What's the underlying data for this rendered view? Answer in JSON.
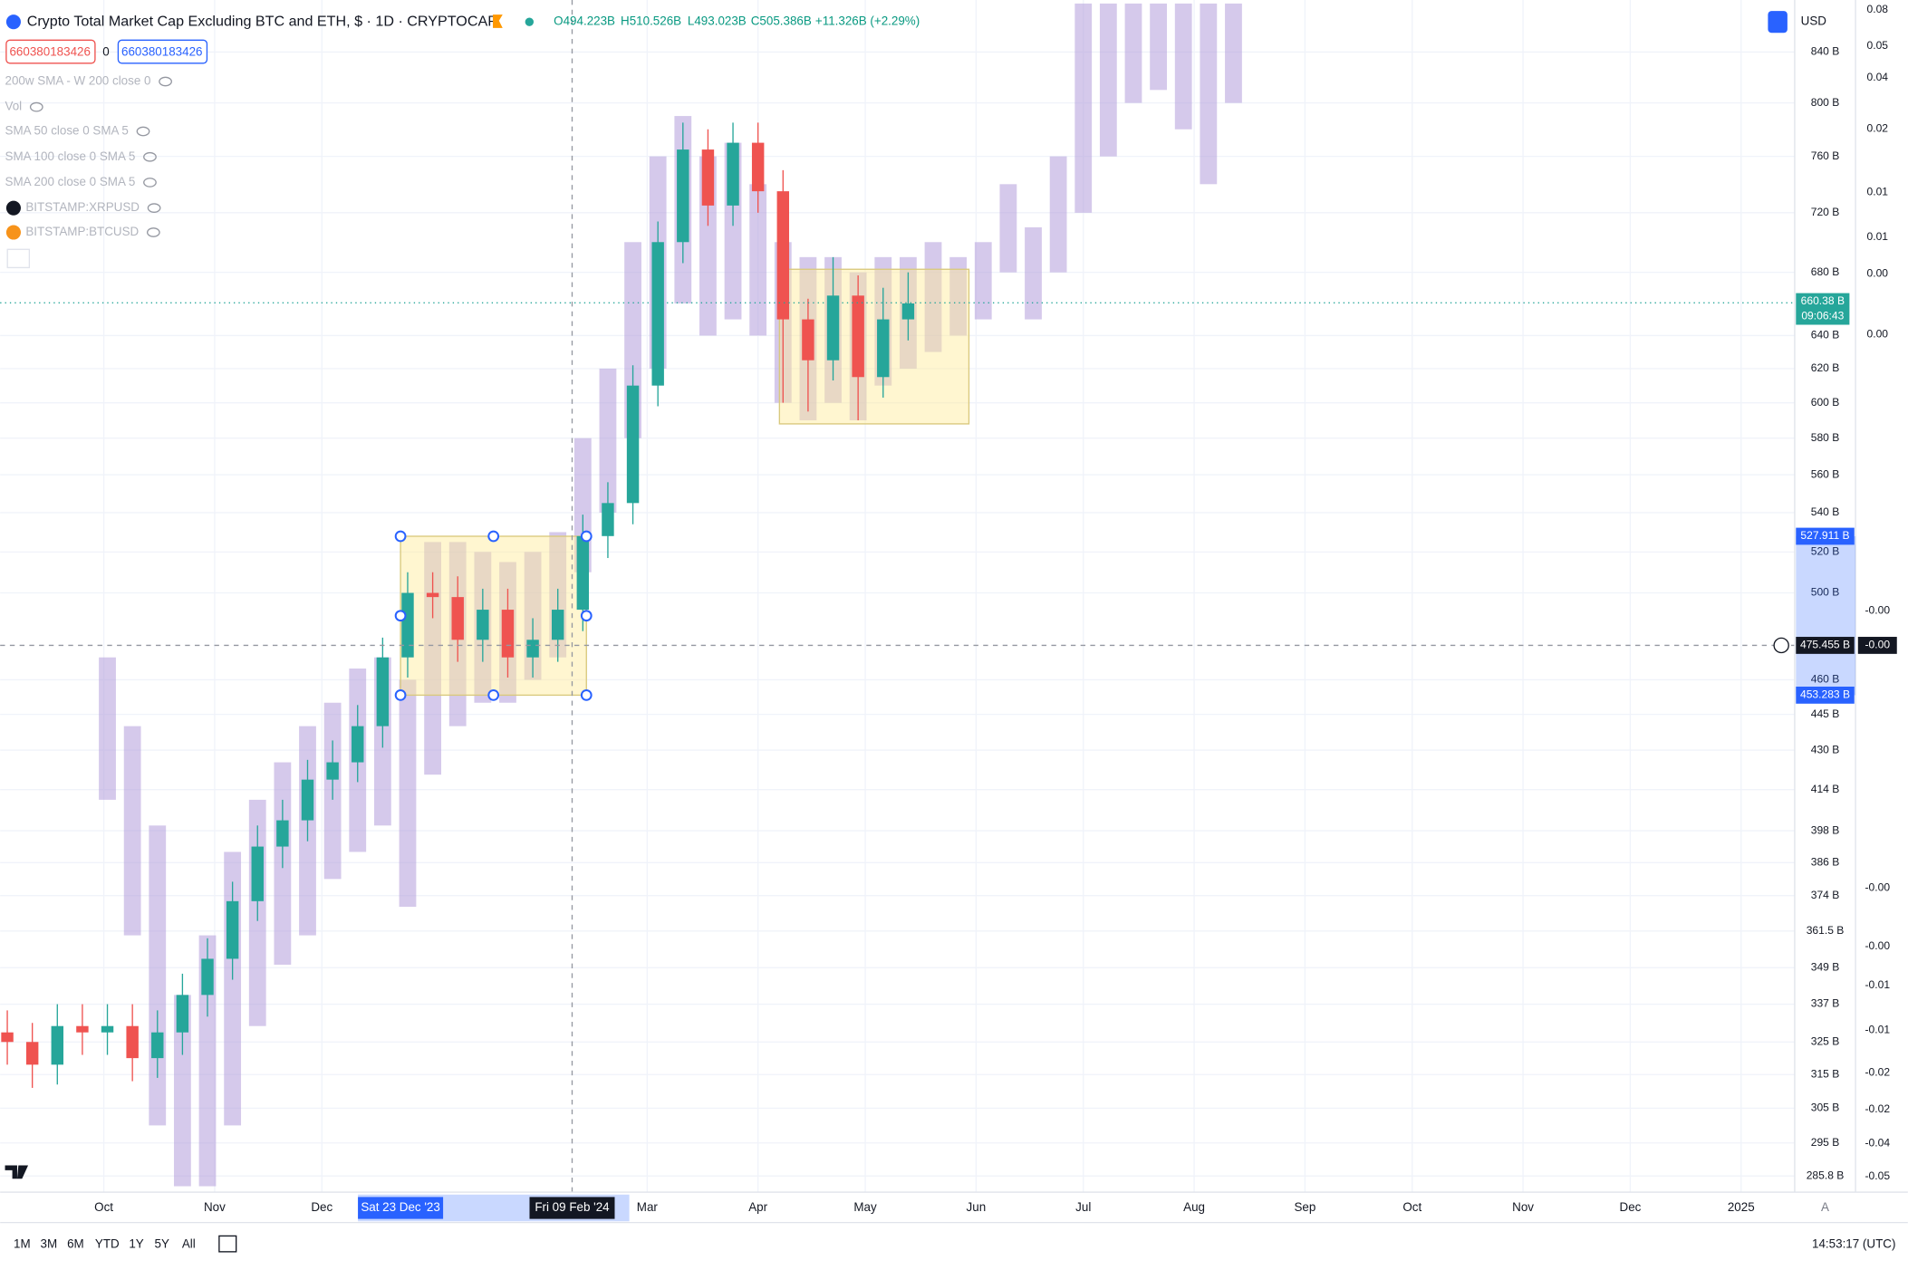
{
  "header": {
    "title": "Crypto Total Market Cap Excluding BTC and ETH, $ · 1D · CRYPTOCAP",
    "ohlc": [
      "O494.223B",
      "H510.526B",
      "L493.023B",
      "C505.386B",
      "+11.326B (+2.29%)"
    ],
    "id_left": "660380183426",
    "id_mid": "0",
    "id_right": "660380183426",
    "currency": "USD"
  },
  "indicators": [
    "200w SMA - W 200 close 0",
    "Vol",
    "SMA 50 close 0 SMA 5",
    "SMA 100 close 0 SMA 5",
    "SMA 200 close 0 SMA 5",
    "BITSTAMP:XRPUSD",
    "BITSTAMP:BTCUSD"
  ],
  "chart_data": {
    "type": "candlestick",
    "log_scale": true,
    "grid": true,
    "xlim": [
      "2023-09-02",
      "2025-01-16"
    ],
    "ylim": [
      281.4,
      883
    ],
    "xticks": [
      {
        "value": "2023-10-01",
        "label": "Oct"
      },
      {
        "value": "2023-11-01",
        "label": "Nov"
      },
      {
        "value": "2023-12-01",
        "label": "Dec"
      },
      {
        "value": "2024-03-01",
        "label": "Mar"
      },
      {
        "value": "2024-04-01",
        "label": "Apr"
      },
      {
        "value": "2024-05-01",
        "label": "May"
      },
      {
        "value": "2024-06-01",
        "label": "Jun"
      },
      {
        "value": "2024-07-01",
        "label": "Jul"
      },
      {
        "value": "2024-08-01",
        "label": "Aug"
      },
      {
        "value": "2024-09-01",
        "label": "Sep"
      },
      {
        "value": "2024-10-01",
        "label": "Oct"
      },
      {
        "value": "2024-11-01",
        "label": "Nov"
      },
      {
        "value": "2024-12-01",
        "label": "Dec"
      },
      {
        "value": "2025-01-01",
        "label": "2025"
      }
    ],
    "yticks": [
      {
        "value": 840,
        "label": "840 B"
      },
      {
        "value": 800,
        "label": "800 B"
      },
      {
        "value": 760,
        "label": "760 B"
      },
      {
        "value": 720,
        "label": "720 B"
      },
      {
        "value": 680,
        "label": "680 B"
      },
      {
        "value": 640,
        "label": "640 B"
      },
      {
        "value": 620,
        "label": "620 B"
      },
      {
        "value": 600,
        "label": "600 B"
      },
      {
        "value": 580,
        "label": "580 B"
      },
      {
        "value": 560,
        "label": "560 B"
      },
      {
        "value": 540,
        "label": "540 B"
      },
      {
        "value": 520,
        "label": "520 B"
      },
      {
        "value": 500,
        "label": "500 B"
      },
      {
        "value": 460,
        "label": "460 B"
      },
      {
        "value": 445,
        "label": "445 B"
      },
      {
        "value": 430,
        "label": "430 B"
      },
      {
        "value": 414,
        "label": "414 B"
      },
      {
        "value": 398,
        "label": "398 B"
      },
      {
        "value": 386,
        "label": "386 B"
      },
      {
        "value": 374,
        "label": "374 B"
      },
      {
        "value": 361.5,
        "label": "361.5 B"
      },
      {
        "value": 349,
        "label": "349 B"
      },
      {
        "value": 337,
        "label": "337 B"
      },
      {
        "value": 325,
        "label": "325 B"
      },
      {
        "value": 315,
        "label": "315 B"
      },
      {
        "value": 305,
        "label": "305 B"
      },
      {
        "value": 295,
        "label": "295 B"
      },
      {
        "value": 285.8,
        "label": "285.8 B"
      }
    ],
    "up_color": "#26a69a",
    "down_color": "#ef5350",
    "candles": {
      "x": [
        "2023-09-04",
        "2023-09-11",
        "2023-09-18",
        "2023-09-25",
        "2023-10-02",
        "2023-10-09",
        "2023-10-16",
        "2023-10-23",
        "2023-10-30",
        "2023-11-06",
        "2023-11-13",
        "2023-11-20",
        "2023-11-27",
        "2023-12-04",
        "2023-12-11",
        "2023-12-18",
        "2023-12-25",
        "2024-01-01",
        "2024-01-08",
        "2024-01-15",
        "2024-01-22",
        "2024-01-29",
        "2024-02-05",
        "2024-02-12",
        "2024-02-19",
        "2024-02-26",
        "2024-03-04",
        "2024-03-11",
        "2024-03-18",
        "2024-03-25",
        "2024-04-01",
        "2024-04-08",
        "2024-04-15",
        "2024-04-22",
        "2024-04-29",
        "2024-05-06",
        "2024-05-13"
      ],
      "open": [
        328,
        325,
        318,
        330,
        328,
        330,
        320,
        328,
        340,
        352,
        372,
        392,
        402,
        418,
        425,
        440,
        470,
        500,
        498,
        478,
        492,
        470,
        478,
        492,
        528,
        545,
        610,
        700,
        765,
        725,
        770,
        735,
        650,
        625,
        665,
        615,
        650
      ],
      "high": [
        335,
        331,
        337,
        337,
        337,
        337,
        335,
        347,
        359,
        379,
        400,
        410,
        426,
        434,
        449,
        479,
        510,
        510,
        508,
        502,
        502,
        488,
        502,
        539,
        556,
        622,
        714,
        785,
        780,
        785,
        785,
        750,
        663,
        690,
        678,
        670,
        680
      ],
      "low": [
        318,
        311,
        312,
        321,
        321,
        313,
        314,
        321,
        333,
        345,
        365,
        384,
        394,
        410,
        417,
        431,
        461,
        488,
        468,
        468,
        461,
        461,
        468,
        482,
        517,
        534,
        598,
        686,
        711,
        711,
        720,
        600,
        595,
        613,
        590,
        603,
        637
      ],
      "close": [
        325,
        318,
        330,
        328,
        330,
        320,
        328,
        340,
        352,
        372,
        392,
        402,
        418,
        425,
        440,
        470,
        500,
        498,
        478,
        492,
        470,
        478,
        492,
        528,
        545,
        610,
        700,
        765,
        725,
        770,
        735,
        650,
        625,
        665,
        615,
        650,
        660
      ]
    },
    "overlay": {
      "name": "BITSTAMP:XRPUSD",
      "color": "#b39ddb",
      "x": [
        "2023-10-02",
        "2023-10-09",
        "2023-10-16",
        "2023-10-23",
        "2023-10-30",
        "2023-11-06",
        "2023-11-13",
        "2023-11-20",
        "2023-11-27",
        "2023-12-04",
        "2023-12-11",
        "2023-12-18",
        "2023-12-25",
        "2024-01-01",
        "2024-01-08",
        "2024-01-15",
        "2024-01-22",
        "2024-01-29",
        "2024-02-05",
        "2024-02-12",
        "2024-02-19",
        "2024-02-26",
        "2024-03-04",
        "2024-03-11",
        "2024-03-18",
        "2024-03-25",
        "2024-04-01",
        "2024-04-08",
        "2024-04-15",
        "2024-04-22",
        "2024-04-29",
        "2024-05-06",
        "2024-05-13",
        "2024-05-20",
        "2024-05-27",
        "2024-06-03",
        "2024-06-10",
        "2024-06-17",
        "2024-06-24",
        "2024-07-01",
        "2024-07-08",
        "2024-07-15",
        "2024-07-22",
        "2024-07-29",
        "2024-08-05",
        "2024-08-12"
      ],
      "low": [
        410,
        360,
        300,
        283,
        283,
        300,
        330,
        350,
        360,
        380,
        390,
        400,
        370,
        420,
        440,
        450,
        450,
        460,
        470,
        510,
        540,
        580,
        620,
        660,
        640,
        650,
        640,
        600,
        590,
        600,
        590,
        610,
        620,
        630,
        640,
        650,
        680,
        650,
        680,
        720,
        760,
        800,
        810,
        780,
        740,
        800
      ],
      "high": [
        470,
        440,
        400,
        340,
        360,
        390,
        410,
        425,
        440,
        450,
        465,
        470,
        460,
        525,
        525,
        520,
        515,
        520,
        530,
        580,
        620,
        700,
        760,
        790,
        760,
        770,
        740,
        700,
        690,
        690,
        680,
        690,
        690,
        700,
        690,
        700,
        740,
        710,
        760,
        880,
        880,
        880,
        880,
        880,
        880,
        880
      ]
    },
    "rectangles": [
      {
        "x": [
          "2023-12-23",
          "2024-02-13"
        ],
        "y": [
          453.283,
          527.911
        ]
      },
      {
        "x": [
          "2024-04-07",
          "2024-05-30"
        ],
        "y": [
          588,
          682
        ]
      }
    ],
    "price_labels": [
      {
        "value": 527.911,
        "label": "527.911 B"
      },
      {
        "value": 453.283,
        "label": "453.283 B"
      }
    ],
    "crosshair": {
      "x": {
        "value": "2024-02-09",
        "label": "Fri 09 Feb '24"
      },
      "y": {
        "value": 475.455,
        "label": "475.455 B"
      }
    },
    "range_start_label": {
      "value": "2023-12-23",
      "label": "Sat 23 Dec '23"
    },
    "last_price": {
      "value": 660.38,
      "label": "660.38 B",
      "countdown": "09:06:43"
    }
  },
  "overlay_scale_labels": [
    "0.08",
    "0.05",
    "0.04",
    "0.02",
    "0.01",
    "0.01",
    "0.00",
    "0.00",
    "-0.00",
    "-0.00",
    "-0.00",
    "-0.01",
    "-0.01",
    "-0.02",
    "-0.02",
    "-0.04",
    "-0.05"
  ],
  "overlay_crosshair_label": "-0.00",
  "footer": {
    "ranges": [
      "1M",
      "3M",
      "6M",
      "YTD",
      "1Y",
      "5Y",
      "All"
    ],
    "time": "14:53:17 (UTC)",
    "scale_mode": "A"
  }
}
